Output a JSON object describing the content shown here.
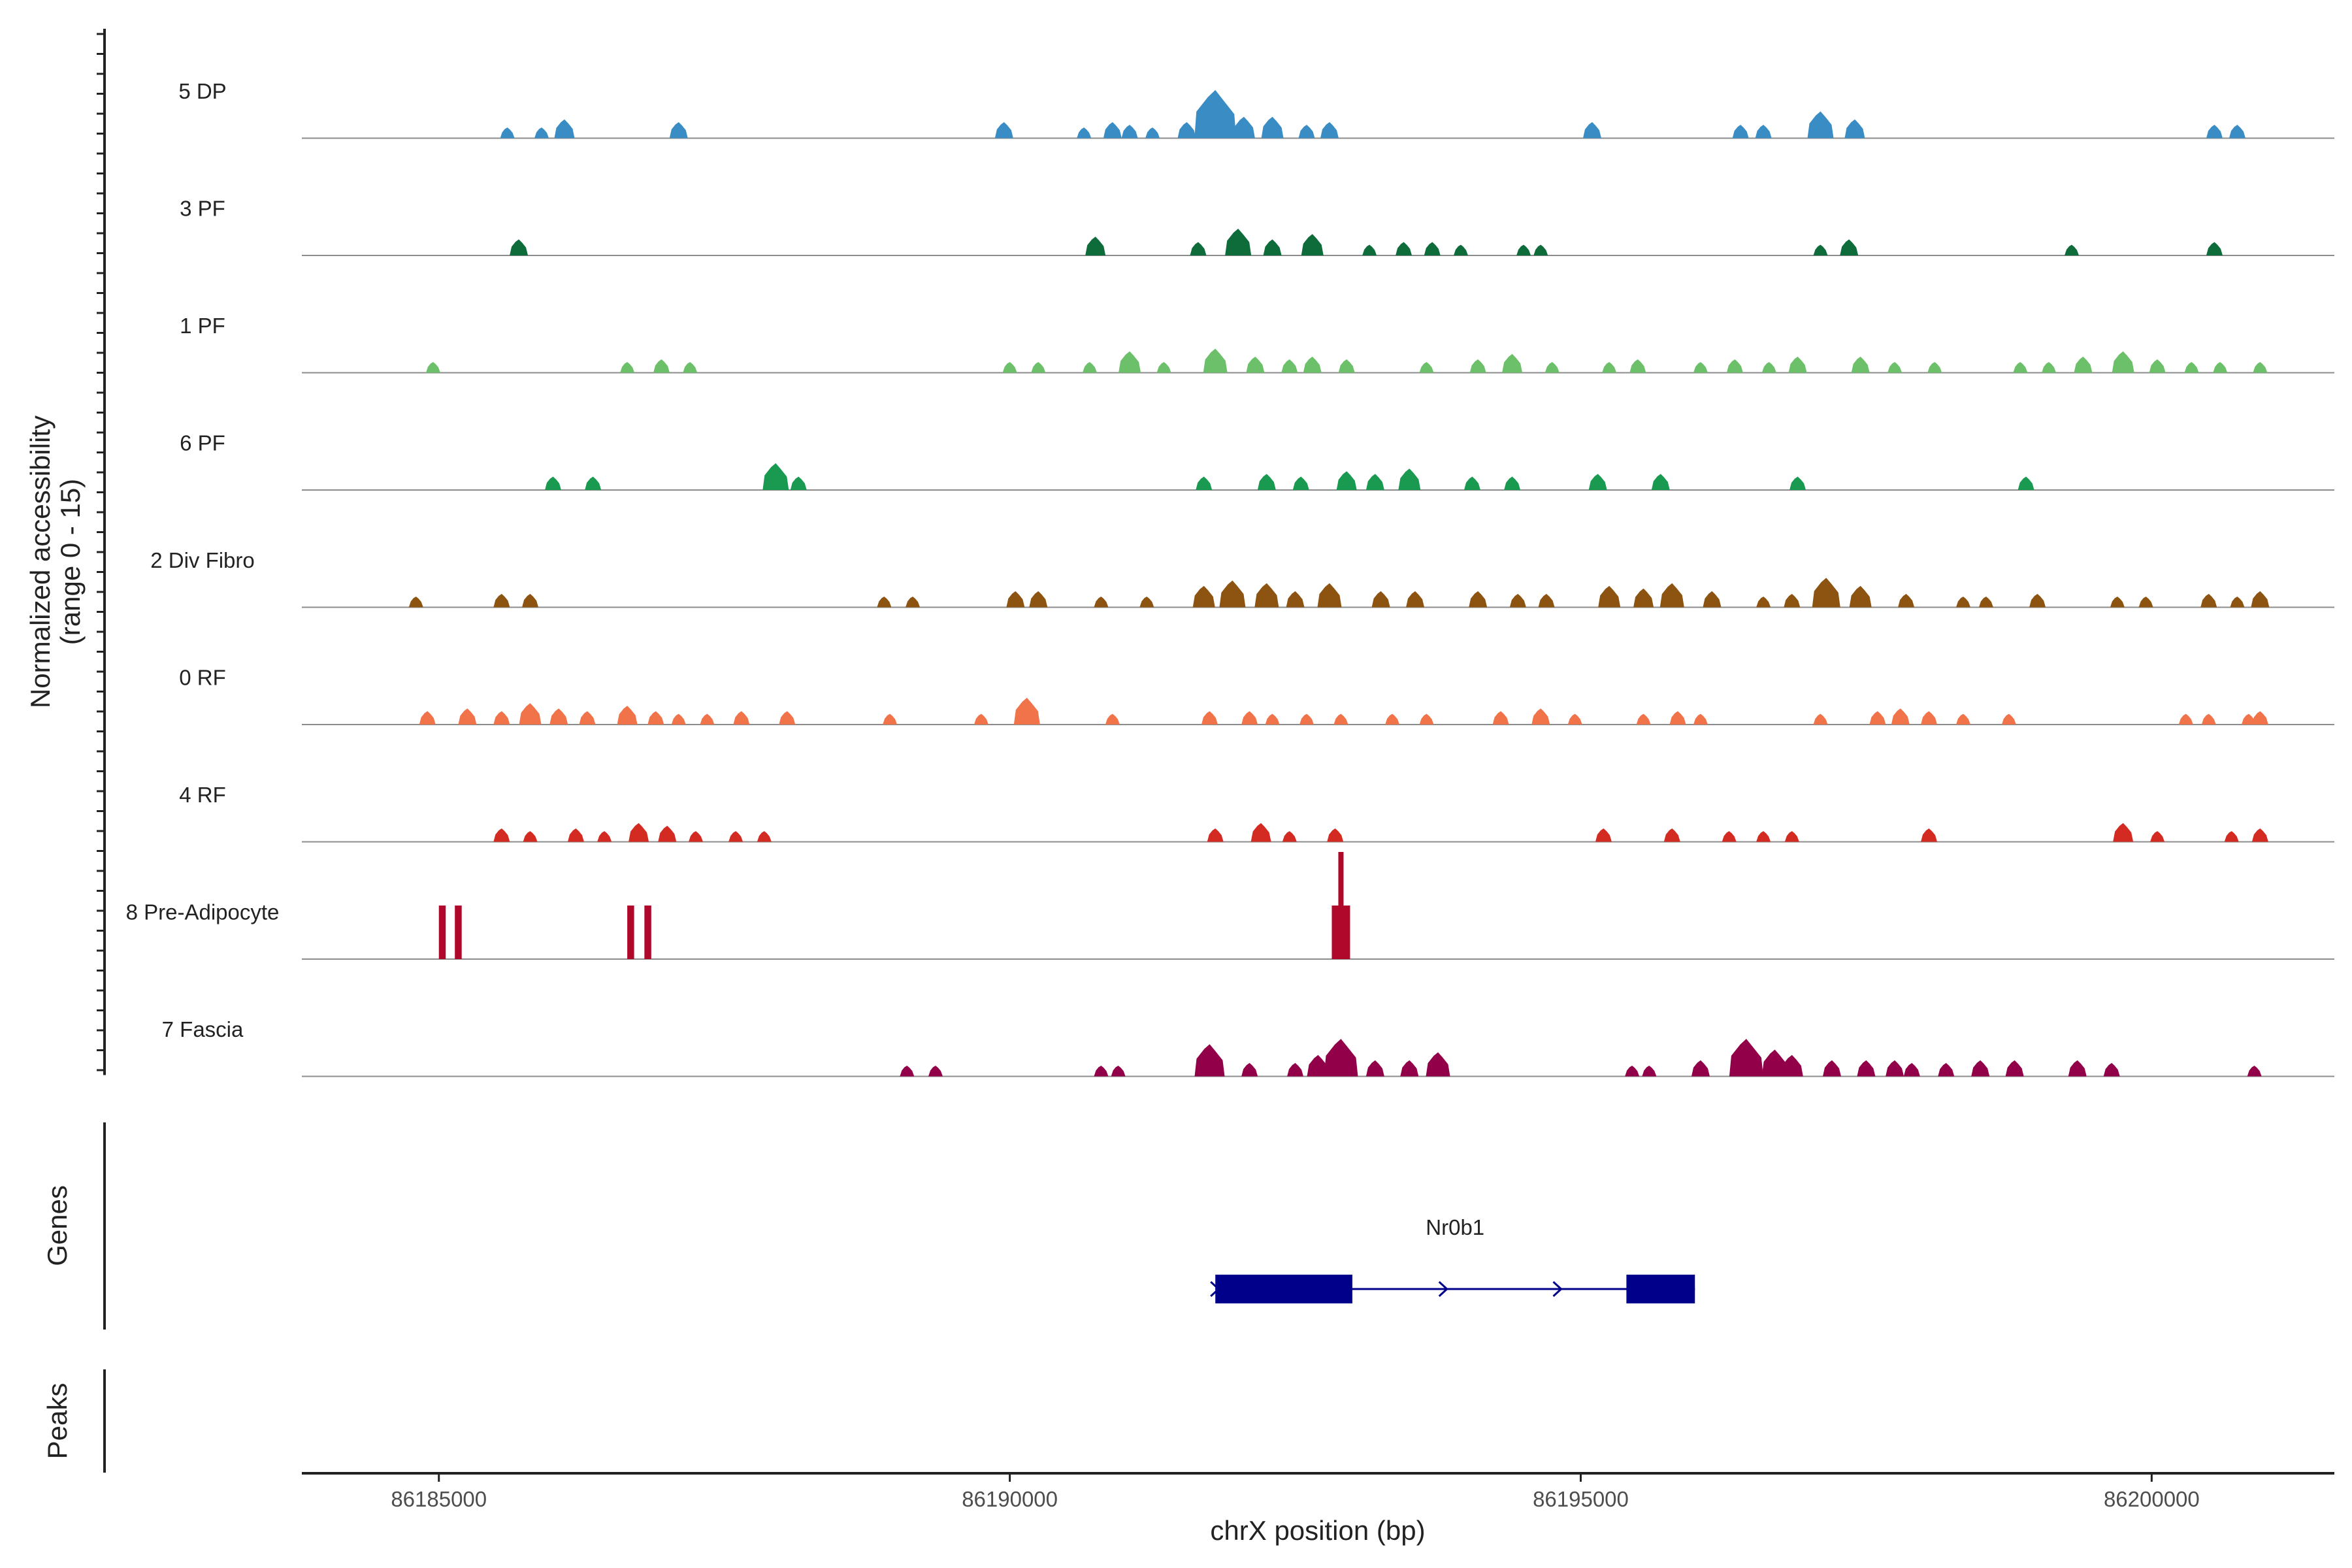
{
  "chart_data": {
    "type": "area",
    "title": "",
    "ylabel": [
      "Normalized accessibility",
      "(range 0 - 15)"
    ],
    "xlabel": "chrX position (bp)",
    "ylim": [
      0,
      15
    ],
    "xlim": [
      86183800,
      86201600
    ],
    "xticks": [
      86185000,
      86190000,
      86195000,
      86200000
    ],
    "xtick_labels": [
      "86185000",
      "86190000",
      "86195000",
      "86200000"
    ],
    "tracks": [
      {
        "name": "5 DP",
        "color": "#3a8dc4",
        "peaks": [
          [
            86185600,
            2
          ],
          [
            86185900,
            2
          ],
          [
            86186100,
            3.5
          ],
          [
            86187100,
            3
          ],
          [
            86189950,
            3
          ],
          [
            86190650,
            2
          ],
          [
            86190900,
            3
          ],
          [
            86191050,
            2.5
          ],
          [
            86191250,
            2
          ],
          [
            86191550,
            3
          ],
          [
            86191800,
            9
          ],
          [
            86192050,
            4
          ],
          [
            86192300,
            4
          ],
          [
            86192600,
            2.5
          ],
          [
            86192800,
            3
          ],
          [
            86195100,
            3
          ],
          [
            86196400,
            2.5
          ],
          [
            86196600,
            2.5
          ],
          [
            86197100,
            5
          ],
          [
            86197400,
            3.5
          ],
          [
            86200550,
            2.5
          ],
          [
            86200750,
            2.5
          ]
        ]
      },
      {
        "name": "3 PF",
        "color": "#0e6b3a",
        "peaks": [
          [
            86185700,
            3
          ],
          [
            86190750,
            3.5
          ],
          [
            86191650,
            2.5
          ],
          [
            86192000,
            5
          ],
          [
            86192300,
            3
          ],
          [
            86192650,
            4
          ],
          [
            86193150,
            2
          ],
          [
            86193450,
            2.5
          ],
          [
            86193700,
            2.5
          ],
          [
            86193950,
            2
          ],
          [
            86194500,
            2
          ],
          [
            86194650,
            2
          ],
          [
            86197100,
            2
          ],
          [
            86197350,
            3
          ],
          [
            86199300,
            2
          ],
          [
            86200550,
            2.5
          ]
        ]
      },
      {
        "name": "1 PF",
        "color": "#6cc06a",
        "peaks": [
          [
            86184950,
            2
          ],
          [
            86186650,
            2
          ],
          [
            86186950,
            2.5
          ],
          [
            86187200,
            2
          ],
          [
            86190000,
            2
          ],
          [
            86190250,
            2
          ],
          [
            86190700,
            2
          ],
          [
            86191050,
            4
          ],
          [
            86191350,
            2
          ],
          [
            86191800,
            4.5
          ],
          [
            86192150,
            3
          ],
          [
            86192450,
            2.5
          ],
          [
            86192650,
            3
          ],
          [
            86192950,
            2.5
          ],
          [
            86193650,
            2
          ],
          [
            86194100,
            2.5
          ],
          [
            86194400,
            3.5
          ],
          [
            86194750,
            2
          ],
          [
            86195250,
            2
          ],
          [
            86195500,
            2.5
          ],
          [
            86196050,
            2
          ],
          [
            86196350,
            2.5
          ],
          [
            86196650,
            2
          ],
          [
            86196900,
            3
          ],
          [
            86197450,
            3
          ],
          [
            86197750,
            2
          ],
          [
            86198100,
            2
          ],
          [
            86198850,
            2
          ],
          [
            86199100,
            2
          ],
          [
            86199400,
            3
          ],
          [
            86199750,
            4
          ],
          [
            86200050,
            2.5
          ],
          [
            86200350,
            2
          ],
          [
            86200600,
            2
          ],
          [
            86200950,
            2
          ]
        ]
      },
      {
        "name": "6 PF",
        "color": "#199a50",
        "peaks": [
          [
            86186000,
            2.5
          ],
          [
            86186350,
            2.5
          ],
          [
            86187950,
            5
          ],
          [
            86188150,
            2.5
          ],
          [
            86191700,
            2.5
          ],
          [
            86192250,
            3
          ],
          [
            86192550,
            2.5
          ],
          [
            86192950,
            3.5
          ],
          [
            86193200,
            3
          ],
          [
            86193500,
            4
          ],
          [
            86194050,
            2.5
          ],
          [
            86194400,
            2.5
          ],
          [
            86195150,
            3
          ],
          [
            86195700,
            3
          ],
          [
            86196900,
            2.5
          ],
          [
            86198900,
            2.5
          ]
        ]
      },
      {
        "name": "2 Div Fibro",
        "color": "#8c5311",
        "peaks": [
          [
            86184800,
            2
          ],
          [
            86185550,
            2.5
          ],
          [
            86185800,
            2.5
          ],
          [
            86188900,
            2
          ],
          [
            86189150,
            2
          ],
          [
            86190050,
            3
          ],
          [
            86190250,
            3
          ],
          [
            86190800,
            2
          ],
          [
            86191200,
            2
          ],
          [
            86191700,
            4
          ],
          [
            86191950,
            5
          ],
          [
            86192250,
            4.5
          ],
          [
            86192500,
            3
          ],
          [
            86192800,
            4.5
          ],
          [
            86193250,
            3
          ],
          [
            86193550,
            3
          ],
          [
            86194100,
            3
          ],
          [
            86194450,
            2.5
          ],
          [
            86194700,
            2.5
          ],
          [
            86195250,
            4
          ],
          [
            86195550,
            3.5
          ],
          [
            86195800,
            4.5
          ],
          [
            86196150,
            3
          ],
          [
            86196600,
            2
          ],
          [
            86196850,
            2.5
          ],
          [
            86197150,
            5.5
          ],
          [
            86197450,
            4
          ],
          [
            86197850,
            2.5
          ],
          [
            86198350,
            2
          ],
          [
            86198550,
            2
          ],
          [
            86199000,
            2.5
          ],
          [
            86199700,
            2
          ],
          [
            86199950,
            2
          ],
          [
            86200500,
            2.5
          ],
          [
            86200750,
            2
          ],
          [
            86200950,
            3
          ]
        ]
      },
      {
        "name": "0 RF",
        "color": "#f0734a",
        "peaks": [
          [
            86184900,
            2.5
          ],
          [
            86185250,
            3
          ],
          [
            86185550,
            2.5
          ],
          [
            86185800,
            4
          ],
          [
            86186050,
            3
          ],
          [
            86186300,
            2.5
          ],
          [
            86186650,
            3.5
          ],
          [
            86186900,
            2.5
          ],
          [
            86187100,
            2
          ],
          [
            86187350,
            2
          ],
          [
            86187650,
            2.5
          ],
          [
            86188050,
            2.5
          ],
          [
            86188950,
            2
          ],
          [
            86189750,
            2
          ],
          [
            86190150,
            5
          ],
          [
            86190900,
            2
          ],
          [
            86191750,
            2.5
          ],
          [
            86192100,
            2.5
          ],
          [
            86192300,
            2
          ],
          [
            86192600,
            2
          ],
          [
            86192900,
            2
          ],
          [
            86193350,
            2
          ],
          [
            86193650,
            2
          ],
          [
            86194300,
            2.5
          ],
          [
            86194650,
            3
          ],
          [
            86194950,
            2
          ],
          [
            86195550,
            2
          ],
          [
            86195850,
            2.5
          ],
          [
            86196050,
            2
          ],
          [
            86197100,
            2
          ],
          [
            86197600,
            2.5
          ],
          [
            86197800,
            3
          ],
          [
            86198050,
            2.5
          ],
          [
            86198350,
            2
          ],
          [
            86198750,
            2
          ],
          [
            86200300,
            2
          ],
          [
            86200500,
            2
          ],
          [
            86200850,
            2
          ],
          [
            86200950,
            2.5
          ]
        ]
      },
      {
        "name": "4 RF",
        "color": "#d32b22",
        "peaks": [
          [
            86185550,
            2.5
          ],
          [
            86185800,
            2
          ],
          [
            86186200,
            2.5
          ],
          [
            86186450,
            2
          ],
          [
            86186750,
            3.5
          ],
          [
            86187000,
            3
          ],
          [
            86187250,
            2
          ],
          [
            86187600,
            2
          ],
          [
            86187850,
            2
          ],
          [
            86191800,
            2.5
          ],
          [
            86192200,
            3.5
          ],
          [
            86192450,
            2
          ],
          [
            86192850,
            2.5
          ],
          [
            86195200,
            2.5
          ],
          [
            86195800,
            2.5
          ],
          [
            86196300,
            2
          ],
          [
            86196600,
            2
          ],
          [
            86196850,
            2
          ],
          [
            86198050,
            2.5
          ],
          [
            86199750,
            3.5
          ],
          [
            86200050,
            2
          ],
          [
            86200700,
            2
          ],
          [
            86200950,
            2.5
          ]
        ]
      },
      {
        "name": "8 Pre-Adipocyte",
        "color": "#b0082a",
        "bars": [
          [
            86185000,
            86185060,
            10
          ],
          [
            86185140,
            86185200,
            10
          ],
          [
            86186650,
            86186710,
            10
          ],
          [
            86186800,
            86186860,
            10
          ],
          [
            86192820,
            86192980,
            10
          ]
        ],
        "spikes": [
          [
            86192900,
            20
          ]
        ]
      },
      {
        "name": "7 Fascia",
        "color": "#92004a",
        "peaks": [
          [
            86189100,
            2
          ],
          [
            86189350,
            2
          ],
          [
            86190800,
            2
          ],
          [
            86190950,
            2
          ],
          [
            86191750,
            6
          ],
          [
            86192100,
            2.5
          ],
          [
            86192500,
            2.5
          ],
          [
            86192700,
            4
          ],
          [
            86192900,
            7
          ],
          [
            86193200,
            3
          ],
          [
            86193500,
            3
          ],
          [
            86193750,
            4.5
          ],
          [
            86195450,
            2
          ],
          [
            86195600,
            2
          ],
          [
            86196050,
            3
          ],
          [
            86196450,
            7
          ],
          [
            86196700,
            5
          ],
          [
            86196850,
            4
          ],
          [
            86197200,
            3
          ],
          [
            86197500,
            3
          ],
          [
            86197750,
            3
          ],
          [
            86197900,
            2.5
          ],
          [
            86198200,
            2.5
          ],
          [
            86198500,
            3
          ],
          [
            86198800,
            3
          ],
          [
            86199350,
            3
          ],
          [
            86199650,
            2.5
          ],
          [
            86200900,
            2
          ]
        ]
      }
    ],
    "genes": [
      {
        "name": "Nr0b1",
        "strand": "+",
        "start": 86191800,
        "end": 86196000,
        "exons": [
          [
            86191800,
            86193000
          ],
          [
            86195400,
            86196000
          ]
        ],
        "arrows": [
          86191800,
          86193800,
          86194800
        ]
      }
    ],
    "panel_labels": [
      "Genes",
      "Peaks"
    ]
  }
}
